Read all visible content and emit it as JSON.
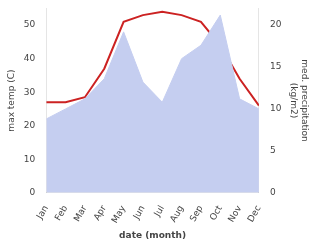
{
  "chart_data": {
    "type": "line",
    "categories": [
      "Jan",
      "Feb",
      "Mar",
      "Apr",
      "May",
      "Jun",
      "Jul",
      "Aug",
      "Sep",
      "Oct",
      "Nov",
      "Dec"
    ],
    "series": [
      {
        "type": "area",
        "color": "#c5cef0",
        "values": [
          22,
          25,
          28,
          34,
          48,
          33,
          27,
          40,
          44,
          53,
          28,
          25
        ]
      },
      {
        "type": "line",
        "color": "#cc2222",
        "values": [
          27,
          27,
          28.5,
          37,
          51,
          53,
          54,
          53,
          51,
          44,
          34,
          26
        ]
      }
    ],
    "xlabel": "date (month)",
    "ylabel": "max temp (C)",
    "y2label": "med. precipitation\n(kg/m2)",
    "ylim": [
      0,
      55
    ],
    "yticks": [
      0,
      10,
      20,
      30,
      40,
      50
    ],
    "y2lim": [
      0,
      22
    ],
    "y2ticks": [
      0,
      5,
      10,
      15,
      20
    ],
    "grid": false
  }
}
